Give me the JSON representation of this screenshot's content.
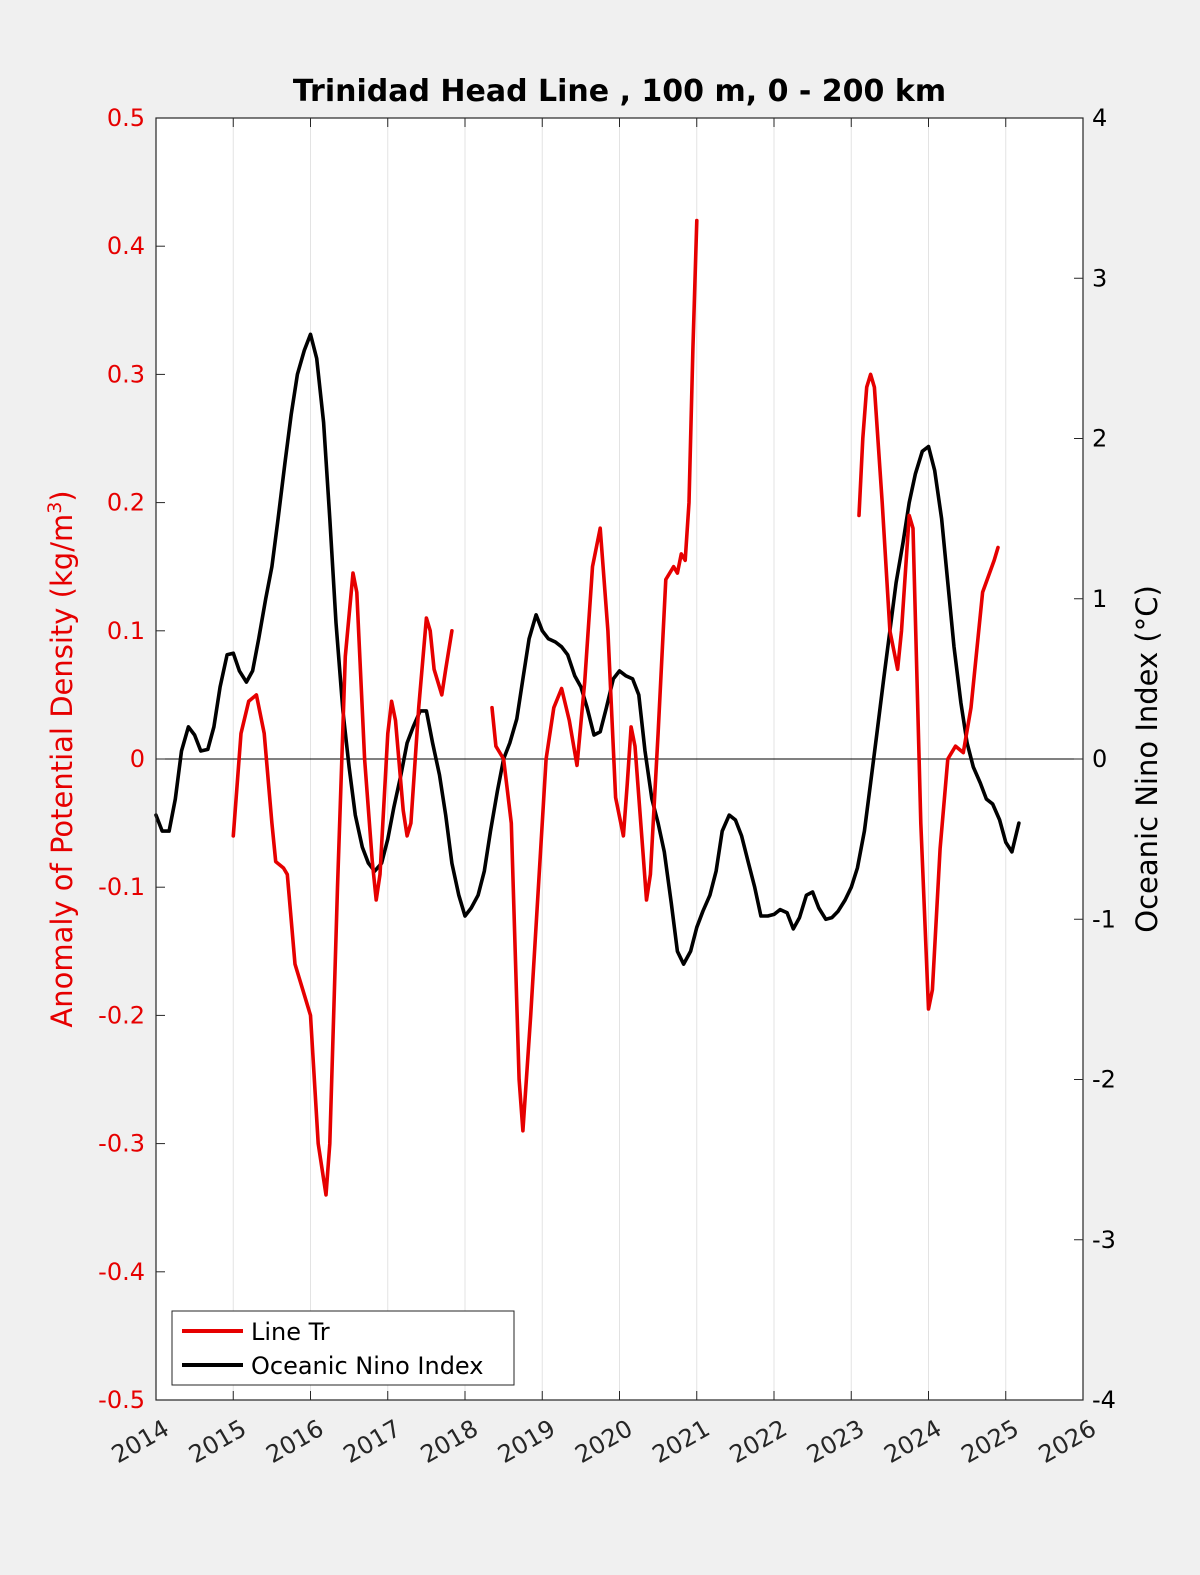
{
  "chart_data": {
    "type": "line",
    "title": "Trinidad Head Line , 100 m, 0 - 200 km",
    "xlabel": "",
    "ylabel_left": "Anomaly of Potential Density (kg/m",
    "ylabel_left_sup": "3",
    "ylabel_left_close": ")",
    "ylabel_right": "Oceanic Nino Index (°C)",
    "xlim": [
      2014,
      2026
    ],
    "ylim_left": [
      -0.5,
      0.5
    ],
    "ylim_right": [
      -4,
      4
    ],
    "x_ticks": [
      "2014",
      "2015",
      "2016",
      "2017",
      "2018",
      "2019",
      "2020",
      "2021",
      "2022",
      "2023",
      "2024",
      "2025",
      "2026"
    ],
    "y_left_ticks": [
      "-0.5",
      "-0.4",
      "-0.3",
      "-0.2",
      "-0.1",
      "0",
      "0.1",
      "0.2",
      "0.3",
      "0.4",
      "0.5"
    ],
    "y_right_ticks": [
      "-4",
      "-3",
      "-2",
      "-1",
      "0",
      "1",
      "2",
      "3",
      "4"
    ],
    "grid": "vertical",
    "legend_position": "bottom-left",
    "colors": {
      "line_tr": "#e60000",
      "oni": "#000000",
      "left_axis": "#e60000",
      "right_axis": "#000000"
    },
    "series": [
      {
        "name": "Line Tr",
        "axis": "left",
        "segments": [
          [
            [
              2015.0,
              -0.06
            ],
            [
              2015.1,
              0.02
            ],
            [
              2015.2,
              0.045
            ],
            [
              2015.3,
              0.05
            ],
            [
              2015.4,
              0.02
            ],
            [
              2015.5,
              -0.05
            ],
            [
              2015.55,
              -0.08
            ],
            [
              2015.65,
              -0.085
            ],
            [
              2015.7,
              -0.09
            ],
            [
              2015.8,
              -0.16
            ],
            [
              2015.9,
              -0.18
            ],
            [
              2016.0,
              -0.2
            ],
            [
              2016.1,
              -0.3
            ],
            [
              2016.2,
              -0.34
            ],
            [
              2016.25,
              -0.3
            ],
            [
              2016.35,
              -0.1
            ],
            [
              2016.45,
              0.08
            ],
            [
              2016.55,
              0.145
            ],
            [
              2016.6,
              0.13
            ],
            [
              2016.7,
              0.0
            ],
            [
              2016.8,
              -0.08
            ],
            [
              2016.85,
              -0.11
            ],
            [
              2016.9,
              -0.09
            ],
            [
              2017.0,
              0.02
            ],
            [
              2017.05,
              0.045
            ],
            [
              2017.1,
              0.03
            ],
            [
              2017.2,
              -0.04
            ],
            [
              2017.25,
              -0.06
            ],
            [
              2017.3,
              -0.05
            ],
            [
              2017.4,
              0.04
            ],
            [
              2017.5,
              0.11
            ],
            [
              2017.55,
              0.1
            ],
            [
              2017.6,
              0.07
            ],
            [
              2017.7,
              0.05
            ],
            [
              2017.75,
              0.07
            ],
            [
              2017.83,
              0.1
            ]
          ],
          [
            [
              2018.35,
              0.04
            ],
            [
              2018.4,
              0.01
            ],
            [
              2018.5,
              0.0
            ],
            [
              2018.6,
              -0.05
            ],
            [
              2018.7,
              -0.25
            ],
            [
              2018.75,
              -0.29
            ],
            [
              2018.85,
              -0.2
            ],
            [
              2018.95,
              -0.1
            ],
            [
              2019.05,
              0.0
            ],
            [
              2019.15,
              0.04
            ],
            [
              2019.25,
              0.055
            ],
            [
              2019.35,
              0.03
            ],
            [
              2019.45,
              -0.005
            ],
            [
              2019.55,
              0.06
            ],
            [
              2019.65,
              0.15
            ],
            [
              2019.75,
              0.18
            ],
            [
              2019.85,
              0.1
            ],
            [
              2019.95,
              -0.03
            ],
            [
              2020.05,
              -0.06
            ],
            [
              2020.1,
              -0.02
            ],
            [
              2020.15,
              0.025
            ],
            [
              2020.2,
              0.01
            ],
            [
              2020.3,
              -0.07
            ],
            [
              2020.35,
              -0.11
            ],
            [
              2020.4,
              -0.09
            ],
            [
              2020.5,
              0.02
            ],
            [
              2020.6,
              0.14
            ],
            [
              2020.7,
              0.15
            ],
            [
              2020.75,
              0.145
            ],
            [
              2020.8,
              0.16
            ],
            [
              2020.85,
              0.155
            ],
            [
              2020.9,
              0.2
            ],
            [
              2020.95,
              0.32
            ],
            [
              2021.0,
              0.42
            ]
          ],
          [
            [
              2023.1,
              0.19
            ],
            [
              2023.15,
              0.25
            ],
            [
              2023.2,
              0.29
            ],
            [
              2023.25,
              0.3
            ],
            [
              2023.3,
              0.29
            ],
            [
              2023.4,
              0.2
            ],
            [
              2023.5,
              0.1
            ],
            [
              2023.6,
              0.07
            ],
            [
              2023.65,
              0.1
            ],
            [
              2023.75,
              0.19
            ],
            [
              2023.8,
              0.18
            ],
            [
              2023.9,
              -0.05
            ],
            [
              2024.0,
              -0.195
            ],
            [
              2024.05,
              -0.18
            ],
            [
              2024.15,
              -0.07
            ],
            [
              2024.25,
              0.0
            ],
            [
              2024.35,
              0.01
            ],
            [
              2024.45,
              0.005
            ],
            [
              2024.55,
              0.04
            ],
            [
              2024.7,
              0.13
            ],
            [
              2024.85,
              0.155
            ],
            [
              2024.9,
              0.165
            ]
          ]
        ]
      },
      {
        "name": "Oceanic Nino Index",
        "axis": "right",
        "segments": [
          [
            [
              2014.0,
              -0.35
            ],
            [
              2014.08,
              -0.45
            ],
            [
              2014.17,
              -0.45
            ],
            [
              2014.25,
              -0.25
            ],
            [
              2014.33,
              0.05
            ],
            [
              2014.42,
              0.2
            ],
            [
              2014.5,
              0.15
            ],
            [
              2014.58,
              0.05
            ],
            [
              2014.67,
              0.06
            ],
            [
              2014.75,
              0.2
            ],
            [
              2014.83,
              0.45
            ],
            [
              2014.92,
              0.65
            ],
            [
              2015.0,
              0.66
            ],
            [
              2015.08,
              0.55
            ],
            [
              2015.17,
              0.48
            ],
            [
              2015.25,
              0.55
            ],
            [
              2015.33,
              0.75
            ],
            [
              2015.42,
              1.0
            ],
            [
              2015.5,
              1.2
            ],
            [
              2015.58,
              1.5
            ],
            [
              2015.67,
              1.85
            ],
            [
              2015.75,
              2.15
            ],
            [
              2015.83,
              2.4
            ],
            [
              2015.92,
              2.55
            ],
            [
              2016.0,
              2.65
            ],
            [
              2016.08,
              2.5
            ],
            [
              2016.17,
              2.1
            ],
            [
              2016.25,
              1.5
            ],
            [
              2016.33,
              0.85
            ],
            [
              2016.42,
              0.3
            ],
            [
              2016.5,
              -0.05
            ],
            [
              2016.58,
              -0.35
            ],
            [
              2016.67,
              -0.55
            ],
            [
              2016.75,
              -0.65
            ],
            [
              2016.83,
              -0.7
            ],
            [
              2016.92,
              -0.65
            ],
            [
              2017.0,
              -0.5
            ],
            [
              2017.08,
              -0.3
            ],
            [
              2017.17,
              -0.1
            ],
            [
              2017.25,
              0.1
            ],
            [
              2017.33,
              0.2
            ],
            [
              2017.42,
              0.3
            ],
            [
              2017.5,
              0.3
            ],
            [
              2017.58,
              0.1
            ],
            [
              2017.67,
              -0.1
            ],
            [
              2017.75,
              -0.35
            ],
            [
              2017.83,
              -0.65
            ],
            [
              2017.92,
              -0.85
            ],
            [
              2018.0,
              -0.98
            ],
            [
              2018.08,
              -0.93
            ],
            [
              2018.17,
              -0.85
            ],
            [
              2018.25,
              -0.7
            ],
            [
              2018.33,
              -0.45
            ],
            [
              2018.42,
              -0.2
            ],
            [
              2018.5,
              0.0
            ],
            [
              2018.58,
              0.1
            ],
            [
              2018.67,
              0.25
            ],
            [
              2018.75,
              0.5
            ],
            [
              2018.83,
              0.75
            ],
            [
              2018.92,
              0.9
            ],
            [
              2019.0,
              0.8
            ],
            [
              2019.08,
              0.75
            ],
            [
              2019.17,
              0.73
            ],
            [
              2019.25,
              0.7
            ],
            [
              2019.33,
              0.65
            ],
            [
              2019.42,
              0.52
            ],
            [
              2019.5,
              0.45
            ],
            [
              2019.58,
              0.32
            ],
            [
              2019.67,
              0.15
            ],
            [
              2019.75,
              0.17
            ],
            [
              2019.83,
              0.32
            ],
            [
              2019.92,
              0.5
            ],
            [
              2020.0,
              0.55
            ],
            [
              2020.08,
              0.52
            ],
            [
              2020.17,
              0.5
            ],
            [
              2020.25,
              0.4
            ],
            [
              2020.33,
              0.05
            ],
            [
              2020.42,
              -0.25
            ],
            [
              2020.5,
              -0.4
            ],
            [
              2020.58,
              -0.58
            ],
            [
              2020.67,
              -0.9
            ],
            [
              2020.75,
              -1.2
            ],
            [
              2020.83,
              -1.28
            ],
            [
              2020.92,
              -1.2
            ],
            [
              2021.0,
              -1.05
            ],
            [
              2021.08,
              -0.95
            ],
            [
              2021.17,
              -0.85
            ],
            [
              2021.25,
              -0.7
            ],
            [
              2021.33,
              -0.45
            ],
            [
              2021.42,
              -0.35
            ],
            [
              2021.5,
              -0.38
            ],
            [
              2021.58,
              -0.48
            ],
            [
              2021.67,
              -0.65
            ],
            [
              2021.75,
              -0.8
            ],
            [
              2021.83,
              -0.98
            ],
            [
              2021.92,
              -0.98
            ],
            [
              2022.0,
              -0.97
            ],
            [
              2022.08,
              -0.94
            ],
            [
              2022.17,
              -0.96
            ],
            [
              2022.25,
              -1.06
            ],
            [
              2022.33,
              -0.99
            ],
            [
              2022.42,
              -0.85
            ],
            [
              2022.5,
              -0.83
            ],
            [
              2022.58,
              -0.93
            ],
            [
              2022.67,
              -1.0
            ],
            [
              2022.75,
              -0.99
            ],
            [
              2022.83,
              -0.95
            ],
            [
              2022.92,
              -0.88
            ],
            [
              2023.0,
              -0.8
            ],
            [
              2023.08,
              -0.68
            ],
            [
              2023.17,
              -0.45
            ],
            [
              2023.25,
              -0.15
            ],
            [
              2023.33,
              0.15
            ],
            [
              2023.42,
              0.5
            ],
            [
              2023.5,
              0.8
            ],
            [
              2023.58,
              1.1
            ],
            [
              2023.67,
              1.35
            ],
            [
              2023.75,
              1.6
            ],
            [
              2023.83,
              1.78
            ],
            [
              2023.92,
              1.92
            ],
            [
              2024.0,
              1.95
            ],
            [
              2024.08,
              1.8
            ],
            [
              2024.17,
              1.5
            ],
            [
              2024.25,
              1.1
            ],
            [
              2024.33,
              0.7
            ],
            [
              2024.42,
              0.35
            ],
            [
              2024.5,
              0.1
            ],
            [
              2024.58,
              -0.05
            ],
            [
              2024.67,
              -0.15
            ],
            [
              2024.75,
              -0.25
            ],
            [
              2024.83,
              -0.28
            ],
            [
              2024.92,
              -0.38
            ],
            [
              2025.0,
              -0.52
            ],
            [
              2025.08,
              -0.58
            ],
            [
              2025.17,
              -0.4
            ]
          ]
        ]
      }
    ]
  }
}
